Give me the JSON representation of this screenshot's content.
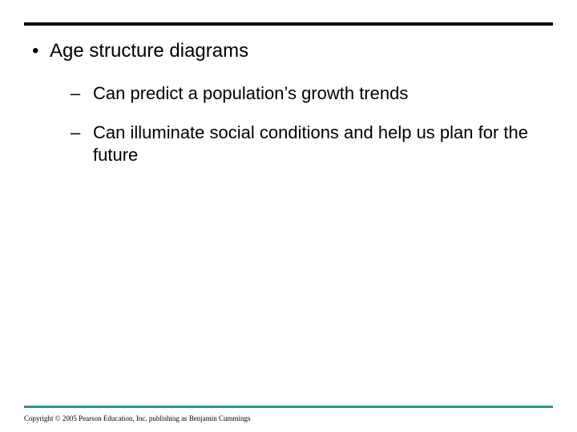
{
  "colors": {
    "top_rule": "#000000",
    "bottom_rule": "#2f8f8f",
    "text": "#000000",
    "background": "#ffffff"
  },
  "typography": {
    "main_fontsize": 24,
    "sub_fontsize": 22,
    "copyright_fontsize": 9
  },
  "main_bullet": {
    "marker": "•",
    "text": "Age structure diagrams"
  },
  "sub_bullets": [
    {
      "marker": "–",
      "text": "Can predict a population’s growth trends"
    },
    {
      "marker": "–",
      "text": "Can illuminate social conditions and help us plan for the future"
    }
  ],
  "copyright": "Copyright © 2005 Pearson Education, Inc. publishing as Benjamin Cummings"
}
